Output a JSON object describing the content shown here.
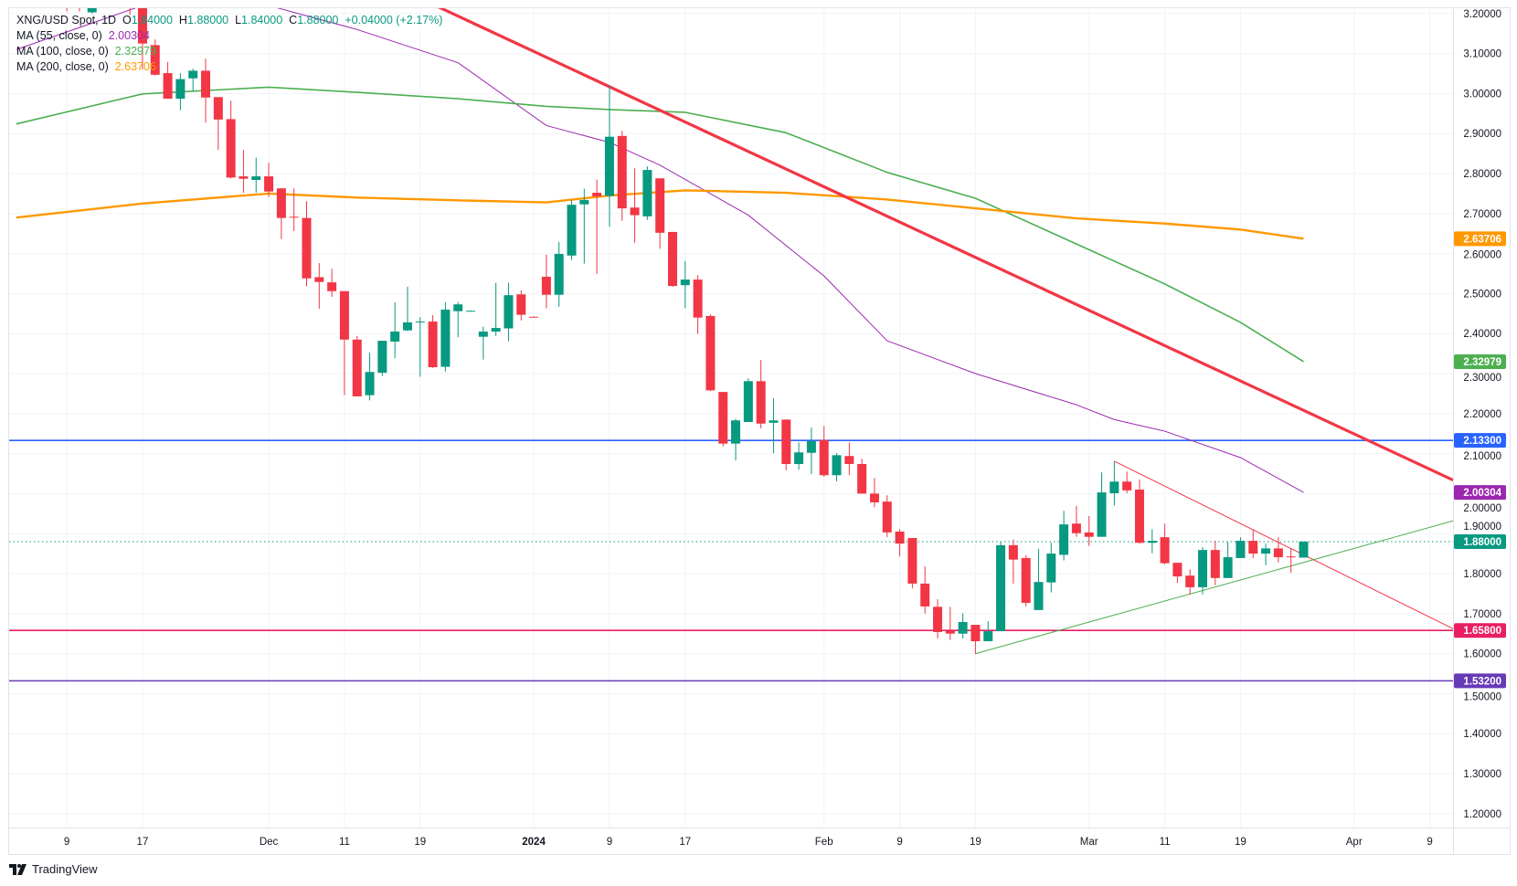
{
  "legend": {
    "symbol": "XNG/USD Spot, 1D",
    "o_label": "O",
    "o": "1.84000",
    "h_label": "H",
    "h": "1.88000",
    "l_label": "L",
    "l": "1.84000",
    "c_label": "C",
    "c": "1.88000",
    "change": "+0.04000 (+2.17%)",
    "ma55_label": "MA (55, close, 0)",
    "ma55_value": "2.00304",
    "ma100_label": "MA (100, close, 0)",
    "ma100_value": "2.32979",
    "ma200_label": "MA (200, close, 0)",
    "ma200_value": "2.63706"
  },
  "branding": {
    "logo_text": "TradingView"
  },
  "colors": {
    "up": "#089981",
    "down": "#f23645",
    "ma55": "#9c27b0",
    "ma100": "#4caf50",
    "ma200": "#ff9800",
    "grid": "#f0f3fa"
  },
  "chart_data": {
    "type": "candlestick",
    "title": "XNG/USD Spot, 1D",
    "ylim": [
      1.2,
      3.2
    ],
    "grid": true,
    "y_ticks": [
      "3.20000",
      "3.10000",
      "3.00000",
      "2.90000",
      "2.80000",
      "2.70000",
      "2.60000",
      "2.50000",
      "2.40000",
      "2.30000",
      "2.20000",
      "2.10000",
      "2.00000",
      "1.90000",
      "1.80000",
      "1.70000",
      "1.60000",
      "1.50000",
      "1.40000",
      "1.30000",
      "1.20000"
    ],
    "x_ticks": [
      {
        "date": "2023-11-09",
        "label": "9"
      },
      {
        "date": "2023-11-17",
        "label": "17"
      },
      {
        "date": "2023-12-01",
        "label": "Dec"
      },
      {
        "date": "2023-12-11",
        "label": "11"
      },
      {
        "date": "2023-12-19",
        "label": "19"
      },
      {
        "date": "2024-01-01",
        "label": "2024"
      },
      {
        "date": "2024-01-09",
        "label": "9"
      },
      {
        "date": "2024-01-17",
        "label": "17"
      },
      {
        "date": "2024-02-01",
        "label": "Feb"
      },
      {
        "date": "2024-02-09",
        "label": "9"
      },
      {
        "date": "2024-02-19",
        "label": "19"
      },
      {
        "date": "2024-03-01",
        "label": "Mar"
      },
      {
        "date": "2024-03-11",
        "label": "11"
      },
      {
        "date": "2024-03-19",
        "label": "19"
      },
      {
        "date": "2024-04-01",
        "label": "Apr"
      },
      {
        "date": "2024-04-09",
        "label": "9"
      }
    ],
    "x_end_date": "2024-04-16",
    "candle_columns": [
      "date",
      "open",
      "high",
      "low",
      "close"
    ],
    "candles": [
      [
        "2023-11-09",
        3.28,
        3.3,
        3.205,
        3.25
      ],
      [
        "2023-11-10",
        3.26,
        3.29,
        3.205,
        3.24
      ],
      [
        "2023-11-13",
        3.203,
        3.27,
        3.2,
        3.24
      ],
      [
        "2023-11-14",
        3.24,
        3.3,
        3.22,
        3.28
      ],
      [
        "2023-11-15",
        3.28,
        3.32,
        3.24,
        3.3
      ],
      [
        "2023-11-16",
        3.3,
        3.33,
        3.197,
        3.26
      ],
      [
        "2023-11-17",
        3.26,
        3.28,
        3.06,
        3.125
      ],
      [
        "2023-11-20",
        3.121,
        3.135,
        3.045,
        3.047
      ],
      [
        "2023-11-21",
        3.051,
        3.079,
        2.987,
        2.987
      ],
      [
        "2023-11-22",
        2.987,
        3.051,
        2.958,
        3.036
      ],
      [
        "2023-11-23",
        3.038,
        3.062,
        3.006,
        3.057
      ],
      [
        "2023-11-24",
        3.057,
        3.087,
        2.927,
        2.99
      ],
      [
        "2023-11-27",
        2.991,
        2.991,
        2.859,
        2.935
      ],
      [
        "2023-11-28",
        2.936,
        2.982,
        2.788,
        2.79
      ],
      [
        "2023-11-29",
        2.793,
        2.859,
        2.752,
        2.787
      ],
      [
        "2023-11-30",
        2.784,
        2.84,
        2.752,
        2.793
      ],
      [
        "2023-12-01",
        2.793,
        2.827,
        2.741,
        2.755
      ],
      [
        "2023-12-04",
        2.763,
        2.763,
        2.636,
        2.689
      ],
      [
        "2023-12-05",
        2.692,
        2.763,
        2.656,
        2.69
      ],
      [
        "2023-12-06",
        2.689,
        2.731,
        2.518,
        2.538
      ],
      [
        "2023-12-07",
        2.541,
        2.576,
        2.462,
        2.529
      ],
      [
        "2023-12-08",
        2.528,
        2.562,
        2.492,
        2.506
      ],
      [
        "2023-12-11",
        2.506,
        2.506,
        2.246,
        2.385
      ],
      [
        "2023-12-12",
        2.385,
        2.394,
        2.243,
        2.243
      ],
      [
        "2023-12-13",
        2.246,
        2.352,
        2.233,
        2.304
      ],
      [
        "2023-12-14",
        2.302,
        2.382,
        2.294,
        2.382
      ],
      [
        "2023-12-15",
        2.38,
        2.478,
        2.338,
        2.405
      ],
      [
        "2023-12-18",
        2.408,
        2.517,
        2.406,
        2.428
      ],
      [
        "2023-12-19",
        2.428,
        2.441,
        2.292,
        2.43
      ],
      [
        "2023-12-20",
        2.43,
        2.446,
        2.314,
        2.316
      ],
      [
        "2023-12-21",
        2.317,
        2.478,
        2.305,
        2.46
      ],
      [
        "2023-12-22",
        2.456,
        2.479,
        2.391,
        2.473
      ],
      [
        "2023-12-25",
        2.457,
        2.458,
        2.456,
        2.457
      ],
      [
        "2023-12-26",
        2.392,
        2.417,
        2.335,
        2.405
      ],
      [
        "2023-12-27",
        2.405,
        2.527,
        2.394,
        2.414
      ],
      [
        "2023-12-28",
        2.413,
        2.527,
        2.381,
        2.496
      ],
      [
        "2023-12-29",
        2.498,
        2.508,
        2.433,
        2.447
      ],
      [
        "2024-01-01",
        2.442,
        2.443,
        2.44,
        2.441
      ],
      [
        "2024-01-02",
        2.542,
        2.597,
        2.463,
        2.497
      ],
      [
        "2024-01-03",
        2.497,
        2.629,
        2.467,
        2.599
      ],
      [
        "2024-01-04",
        2.595,
        2.734,
        2.584,
        2.722
      ],
      [
        "2024-01-05",
        2.723,
        2.762,
        2.575,
        2.734
      ],
      [
        "2024-01-08",
        2.752,
        2.785,
        2.549,
        2.743
      ],
      [
        "2024-01-09",
        2.744,
        3.021,
        2.667,
        2.892
      ],
      [
        "2024-01-10",
        2.894,
        2.907,
        2.682,
        2.713
      ],
      [
        "2024-01-11",
        2.715,
        2.813,
        2.627,
        2.696
      ],
      [
        "2024-01-12",
        2.693,
        2.818,
        2.684,
        2.809
      ],
      [
        "2024-01-15",
        2.788,
        2.788,
        2.612,
        2.652
      ],
      [
        "2024-01-16",
        2.654,
        2.654,
        2.517,
        2.519
      ],
      [
        "2024-01-17",
        2.521,
        2.581,
        2.463,
        2.535
      ],
      [
        "2024-01-18",
        2.535,
        2.546,
        2.399,
        2.44
      ],
      [
        "2024-01-19",
        2.444,
        2.448,
        2.256,
        2.258
      ],
      [
        "2024-01-22",
        2.254,
        2.254,
        2.118,
        2.125
      ],
      [
        "2024-01-23",
        2.125,
        2.187,
        2.083,
        2.183
      ],
      [
        "2024-01-24",
        2.179,
        2.288,
        2.179,
        2.281
      ],
      [
        "2024-01-25",
        2.281,
        2.334,
        2.163,
        2.175
      ],
      [
        "2024-01-26",
        2.177,
        2.238,
        2.101,
        2.183
      ],
      [
        "2024-01-29",
        2.185,
        2.185,
        2.058,
        2.074
      ],
      [
        "2024-01-30",
        2.074,
        2.128,
        2.06,
        2.103
      ],
      [
        "2024-01-31",
        2.102,
        2.165,
        2.049,
        2.131
      ],
      [
        "2024-02-01",
        2.134,
        2.169,
        2.042,
        2.046
      ],
      [
        "2024-02-02",
        2.046,
        2.101,
        2.031,
        2.096
      ],
      [
        "2024-02-05",
        2.094,
        2.128,
        2.046,
        2.074
      ],
      [
        "2024-02-06",
        2.074,
        2.087,
        2.0,
        2.0
      ],
      [
        "2024-02-07",
        2.0,
        2.039,
        1.966,
        1.978
      ],
      [
        "2024-02-08",
        1.98,
        1.996,
        1.891,
        1.903
      ],
      [
        "2024-02-09",
        1.905,
        1.911,
        1.843,
        1.875
      ],
      [
        "2024-02-12",
        1.889,
        1.889,
        1.763,
        1.775
      ],
      [
        "2024-02-13",
        1.775,
        1.818,
        1.7,
        1.718
      ],
      [
        "2024-02-14",
        1.717,
        1.736,
        1.638,
        1.654
      ],
      [
        "2024-02-15",
        1.657,
        1.717,
        1.634,
        1.65
      ],
      [
        "2024-02-16",
        1.65,
        1.701,
        1.638,
        1.679
      ],
      [
        "2024-02-19",
        1.672,
        1.672,
        1.599,
        1.631
      ],
      [
        "2024-02-20",
        1.631,
        1.681,
        1.631,
        1.656
      ],
      [
        "2024-02-21",
        1.656,
        1.881,
        1.656,
        1.871
      ],
      [
        "2024-02-22",
        1.871,
        1.885,
        1.775,
        1.835
      ],
      [
        "2024-02-23",
        1.839,
        1.846,
        1.718,
        1.727
      ],
      [
        "2024-02-26",
        1.709,
        1.862,
        1.709,
        1.779
      ],
      [
        "2024-02-27",
        1.778,
        1.877,
        1.753,
        1.85
      ],
      [
        "2024-02-28",
        1.847,
        1.957,
        1.833,
        1.923
      ],
      [
        "2024-02-29",
        1.925,
        1.969,
        1.892,
        1.901
      ],
      [
        "2024-03-01",
        1.903,
        1.944,
        1.869,
        1.892
      ],
      [
        "2024-03-04",
        1.892,
        2.053,
        1.892,
        2.003
      ],
      [
        "2024-03-05",
        2.001,
        2.081,
        1.97,
        2.03
      ],
      [
        "2024-03-06",
        2.03,
        2.055,
        2.001,
        2.008
      ],
      [
        "2024-03-07",
        2.01,
        2.035,
        1.875,
        1.877
      ],
      [
        "2024-03-08",
        1.877,
        1.911,
        1.851,
        1.882
      ],
      [
        "2024-03-11",
        1.891,
        1.925,
        1.823,
        1.826
      ],
      [
        "2024-03-12",
        1.827,
        1.827,
        1.777,
        1.793
      ],
      [
        "2024-03-13",
        1.795,
        1.811,
        1.748,
        1.766
      ],
      [
        "2024-03-14",
        1.766,
        1.866,
        1.748,
        1.859
      ],
      [
        "2024-03-15",
        1.859,
        1.882,
        1.771,
        1.789
      ],
      [
        "2024-03-18",
        1.789,
        1.879,
        1.789,
        1.841
      ],
      [
        "2024-03-19",
        1.839,
        1.891,
        1.839,
        1.882
      ],
      [
        "2024-03-20",
        1.882,
        1.909,
        1.839,
        1.85
      ],
      [
        "2024-03-21",
        1.85,
        1.875,
        1.821,
        1.863
      ],
      [
        "2024-03-22",
        1.863,
        1.891,
        1.828,
        1.841
      ],
      [
        "2024-03-25",
        1.843,
        1.863,
        1.802,
        1.842
      ],
      [
        "2024-03-26",
        1.84,
        1.88,
        1.84,
        1.88
      ]
    ],
    "moving_averages": [
      {
        "name": "MA (55, close, 0)",
        "color": "#9c27b0",
        "width": 1,
        "points": [
          [
            "2023-11-03",
            3.11
          ],
          [
            "2023-11-17",
            3.22
          ],
          [
            "2023-12-01",
            3.22
          ],
          [
            "2023-12-12",
            3.16
          ],
          [
            "2023-12-22",
            3.077
          ],
          [
            "2024-01-02",
            2.92
          ],
          [
            "2024-01-09",
            2.878
          ],
          [
            "2024-01-15",
            2.821
          ],
          [
            "2024-01-24",
            2.696
          ],
          [
            "2024-02-01",
            2.544
          ],
          [
            "2024-02-08",
            2.382
          ],
          [
            "2024-02-19",
            2.3
          ],
          [
            "2024-02-29",
            2.222
          ],
          [
            "2024-03-05",
            2.185
          ],
          [
            "2024-03-11",
            2.156
          ],
          [
            "2024-03-19",
            2.09
          ],
          [
            "2024-03-26",
            2.00304
          ]
        ]
      },
      {
        "name": "MA (100, close, 0)",
        "color": "#4caf50",
        "width": 1.6,
        "points": [
          [
            "2023-11-03",
            2.924
          ],
          [
            "2023-11-17",
            2.999
          ],
          [
            "2023-12-01",
            3.016
          ],
          [
            "2023-12-12",
            3.003
          ],
          [
            "2023-12-22",
            2.987
          ],
          [
            "2024-01-02",
            2.968
          ],
          [
            "2024-01-09",
            2.96
          ],
          [
            "2024-01-17",
            2.953
          ],
          [
            "2024-01-29",
            2.902
          ],
          [
            "2024-02-08",
            2.803
          ],
          [
            "2024-02-19",
            2.738
          ],
          [
            "2024-02-29",
            2.624
          ],
          [
            "2024-03-11",
            2.524
          ],
          [
            "2024-03-19",
            2.428
          ],
          [
            "2024-03-26",
            2.32979
          ]
        ]
      },
      {
        "name": "MA (200, close, 0)",
        "color": "#ff9800",
        "width": 2.4,
        "points": [
          [
            "2023-11-03",
            2.69
          ],
          [
            "2023-11-17",
            2.725
          ],
          [
            "2023-12-01",
            2.75
          ],
          [
            "2023-12-12",
            2.74
          ],
          [
            "2023-12-22",
            2.733
          ],
          [
            "2024-01-02",
            2.728
          ],
          [
            "2024-01-09",
            2.745
          ],
          [
            "2024-01-17",
            2.758
          ],
          [
            "2024-01-29",
            2.752
          ],
          [
            "2024-02-08",
            2.735
          ],
          [
            "2024-02-19",
            2.713
          ],
          [
            "2024-02-29",
            2.688
          ],
          [
            "2024-03-11",
            2.675
          ],
          [
            "2024-03-19",
            2.66
          ],
          [
            "2024-03-26",
            2.63706
          ]
        ]
      }
    ],
    "trendlines": [
      {
        "color": "#f23645",
        "width": 3.2,
        "extend": "both",
        "points": [
          [
            "2024-01-09",
            3.017
          ],
          [
            "2024-03-26",
            2.208
          ]
        ]
      },
      {
        "color": "#f23645",
        "width": 1,
        "extend": "right",
        "points": [
          [
            "2024-03-05",
            2.081
          ],
          [
            "2024-03-26",
            1.847
          ]
        ]
      },
      {
        "color": "#4caf50",
        "width": 1,
        "extend": "right",
        "points": [
          [
            "2024-02-19",
            1.6
          ],
          [
            "2024-03-26",
            1.828
          ]
        ]
      }
    ],
    "horizontal_lines": [
      {
        "value": 2.133,
        "color": "#2962ff"
      },
      {
        "value": 1.658,
        "color": "#e91e63"
      },
      {
        "value": 1.532,
        "color": "#673ab7"
      }
    ],
    "last_price_line": {
      "value": 1.88,
      "color": "#089981"
    },
    "price_tags": [
      {
        "value": 2.63706,
        "label": "2.63706",
        "color": "#ff9800"
      },
      {
        "value": 2.32979,
        "label": "2.32979",
        "color": "#4caf50"
      },
      {
        "value": 2.133,
        "label": "2.13300",
        "color": "#2962ff"
      },
      {
        "value": 2.00304,
        "label": "2.00304",
        "color": "#9c27b0"
      },
      {
        "value": 1.88,
        "label": "1.88000",
        "color": "#089981"
      },
      {
        "value": 1.658,
        "label": "1.65800",
        "color": "#e91e63"
      },
      {
        "value": 1.532,
        "label": "1.53200",
        "color": "#673ab7"
      }
    ]
  }
}
